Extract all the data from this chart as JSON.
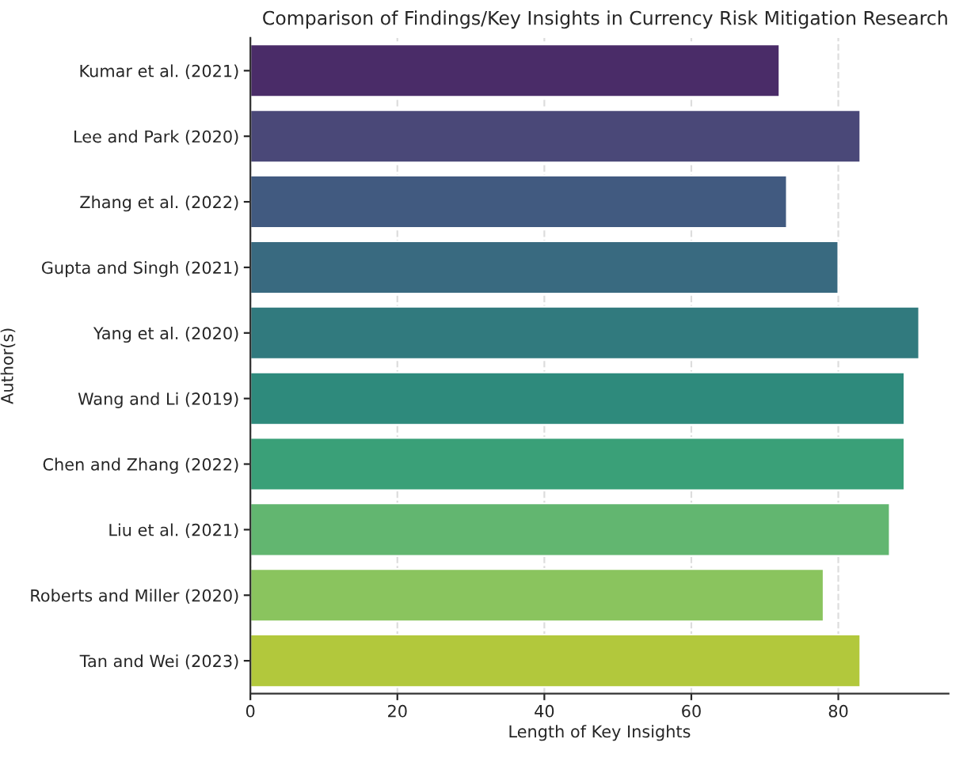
{
  "chart_data": {
    "type": "bar",
    "orientation": "horizontal",
    "title": "Comparison of Findings/Key Insights in Currency Risk Mitigation Research",
    "xlabel": "Length of Key Insights",
    "ylabel": "Author(s)",
    "categories": [
      "Kumar et al. (2021)",
      "Lee and Park (2020)",
      "Zhang et al. (2022)",
      "Gupta and Singh (2021)",
      "Yang et al. (2020)",
      "Wang and Li (2019)",
      "Chen and Zhang (2022)",
      "Liu et al. (2021)",
      "Roberts and Miller (2020)",
      "Tan and Wei (2023)"
    ],
    "values": [
      72,
      83,
      73,
      80,
      91,
      89,
      89,
      87,
      78,
      83
    ],
    "colors": [
      "#4a2c68",
      "#4a4878",
      "#415a80",
      "#396a80",
      "#317a7e",
      "#2e8a7c",
      "#3aa078",
      "#62b670",
      "#8ac45e",
      "#b2c83c"
    ],
    "xlim": [
      0,
      95
    ],
    "xticks": [
      0,
      20,
      40,
      60,
      80
    ],
    "grid": "x"
  }
}
